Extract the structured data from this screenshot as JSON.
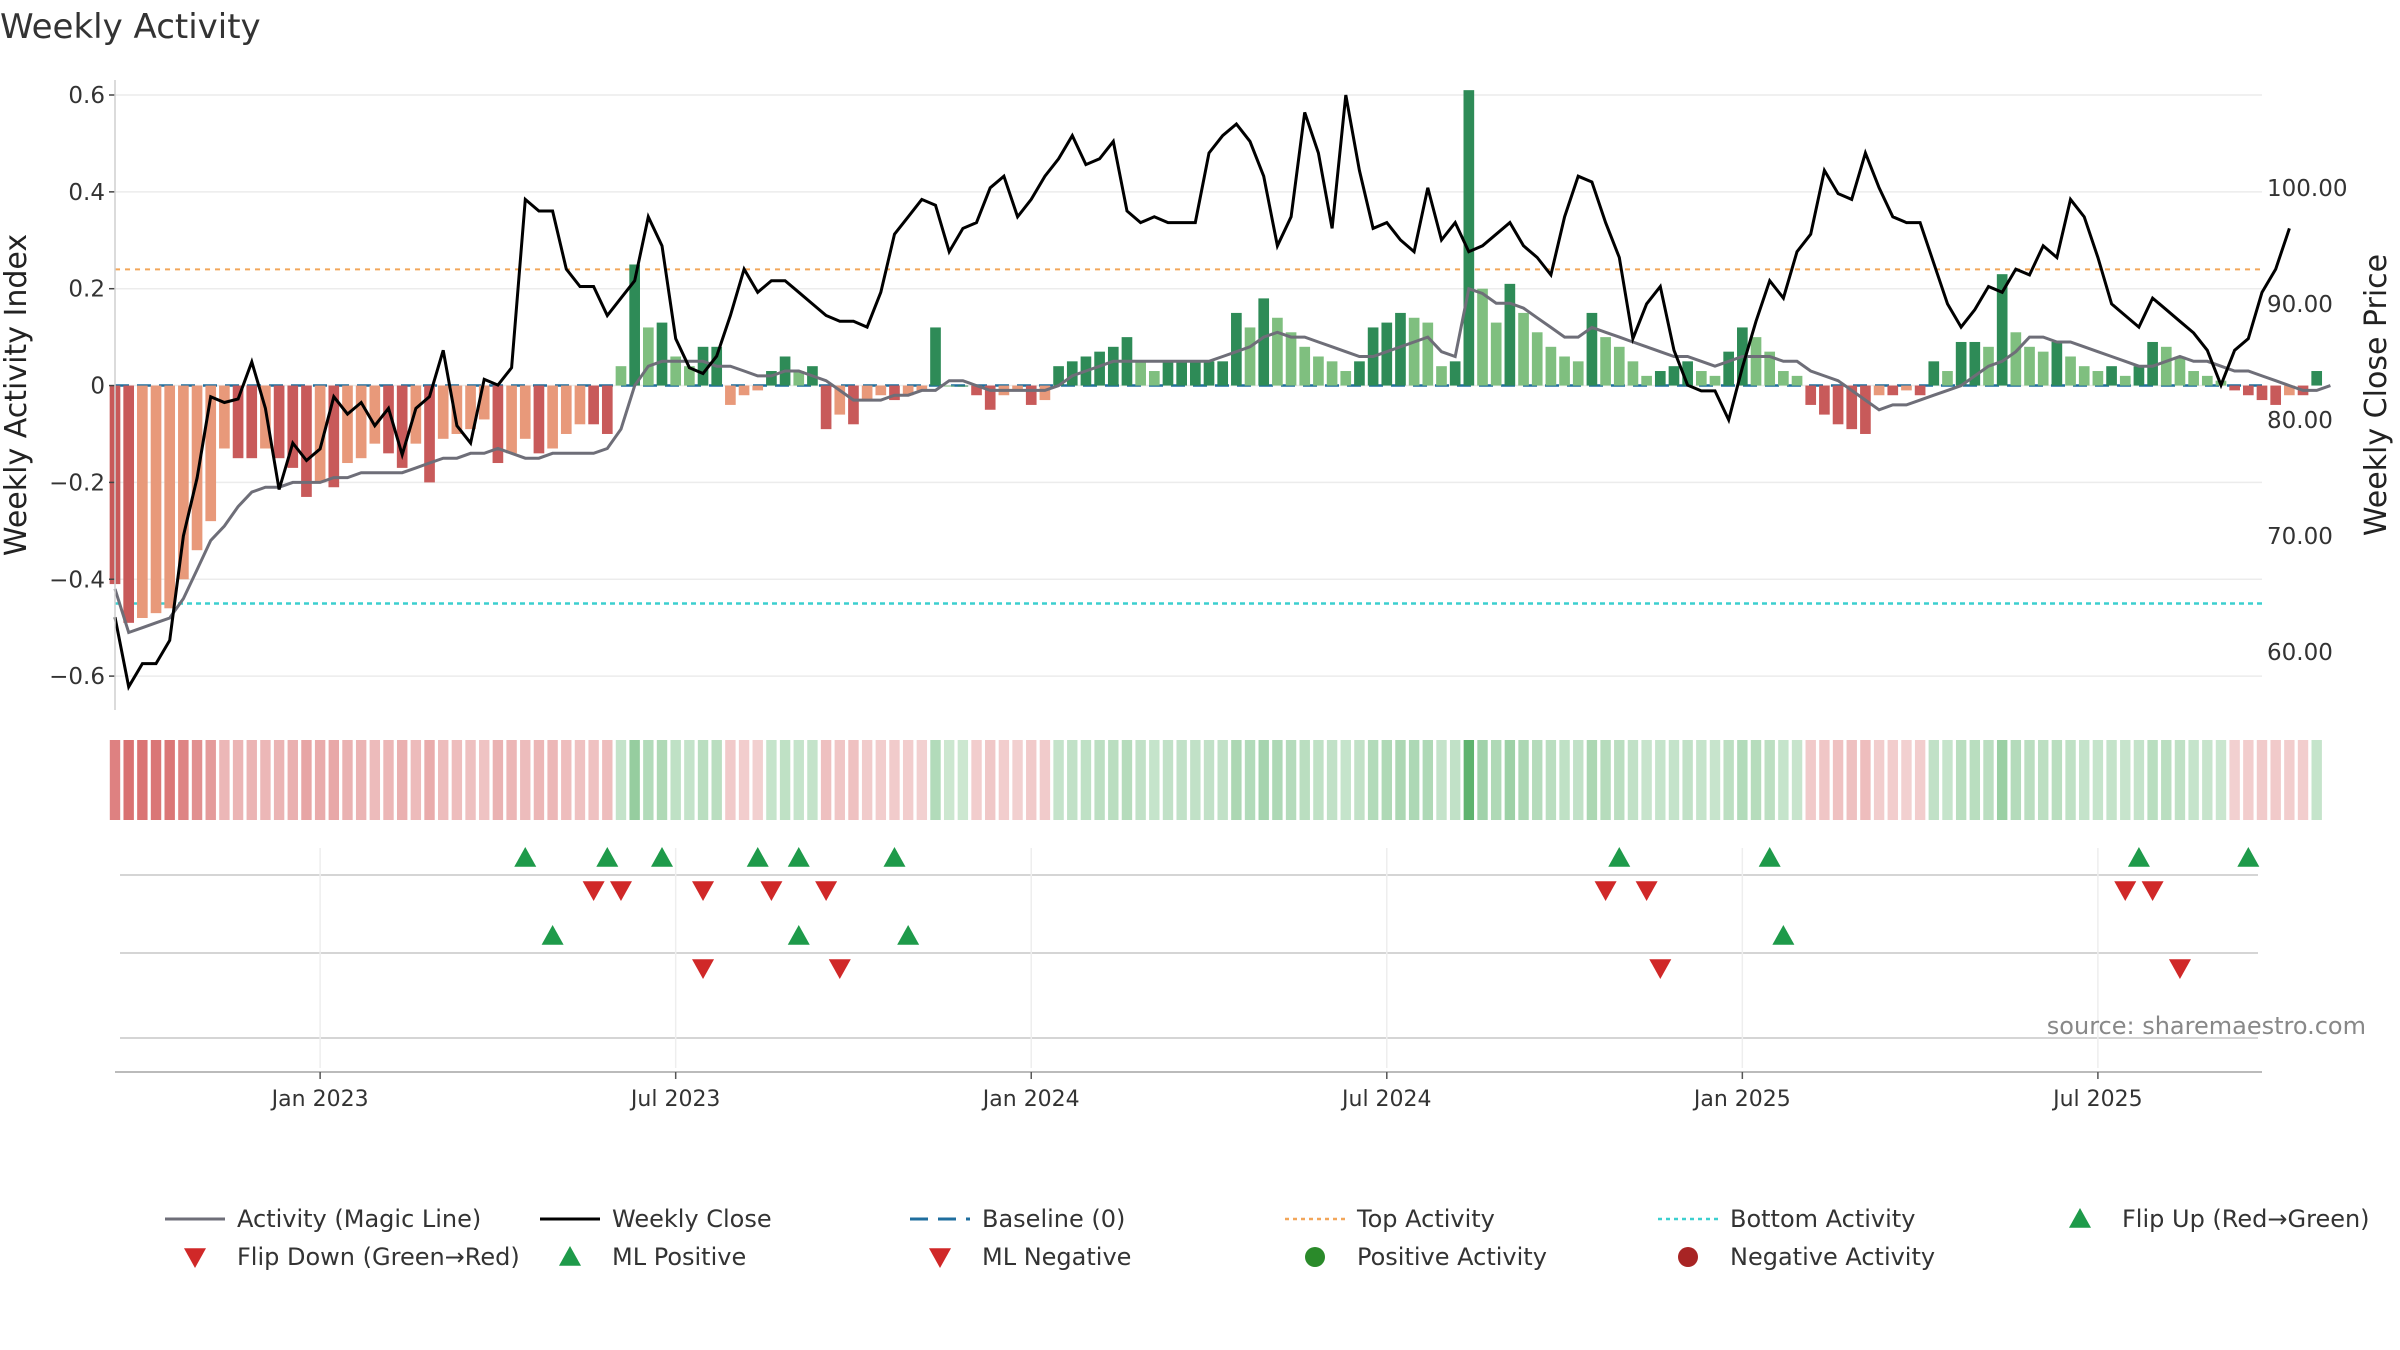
{
  "chart_data": {
    "type": "bar",
    "title": "Weekly Activity",
    "ylabel_left": "Weekly Activity Index",
    "ylabel_right": "Weekly Close Price",
    "source": "source: sharemaestro.com",
    "y_left_lim": [
      -0.67,
      0.6
    ],
    "y_right_lim": [
      55,
      108
    ],
    "y_left_ticks": [
      0.6,
      0.4,
      0.2,
      0,
      -0.2,
      -0.4,
      -0.6
    ],
    "y_left_tick_labels": [
      "0.6",
      "0.4",
      "0.2",
      "0",
      "−0.2",
      "−0.4",
      "−0.6"
    ],
    "y_right_ticks": [
      100,
      90,
      80,
      70,
      60
    ],
    "y_right_tick_labels": [
      "100.00",
      "90.00",
      "80.00",
      "70.00",
      "60.00"
    ],
    "x_week_range": [
      0,
      157
    ],
    "x_ticks": [
      {
        "week": 15,
        "label": "Jan 2023"
      },
      {
        "week": 41,
        "label": "Jul 2023"
      },
      {
        "week": 67,
        "label": "Jan 2024"
      },
      {
        "week": 93,
        "label": "Jul 2024"
      },
      {
        "week": 119,
        "label": "Jan 2025"
      },
      {
        "week": 145,
        "label": "Jul 2025"
      }
    ],
    "top_activity": 0.24,
    "bottom_activity": -0.45,
    "baseline": 0,
    "activity": [
      -0.41,
      -0.49,
      -0.48,
      -0.47,
      -0.46,
      -0.4,
      -0.34,
      -0.28,
      -0.13,
      -0.15,
      -0.15,
      -0.13,
      -0.15,
      -0.17,
      -0.23,
      -0.2,
      -0.21,
      -0.16,
      -0.15,
      -0.12,
      -0.14,
      -0.17,
      -0.12,
      -0.2,
      -0.11,
      -0.1,
      -0.09,
      -0.07,
      -0.16,
      -0.14,
      -0.11,
      -0.14,
      -0.13,
      -0.1,
      -0.08,
      -0.08,
      -0.1,
      0.04,
      0.25,
      0.12,
      0.13,
      0.06,
      0.04,
      0.08,
      0.08,
      -0.04,
      -0.02,
      -0.01,
      0.03,
      0.06,
      0.03,
      0.04,
      -0.09,
      -0.06,
      -0.08,
      -0.03,
      -0.02,
      -0.03,
      -0.02,
      -0.01,
      0.12,
      0.0,
      0.0,
      -0.02,
      -0.05,
      -0.02,
      -0.01,
      -0.04,
      -0.03,
      0.04,
      0.05,
      0.06,
      0.07,
      0.08,
      0.1,
      0.05,
      0.03,
      0.05,
      0.05,
      0.05,
      0.05,
      0.05,
      0.15,
      0.12,
      0.18,
      0.14,
      0.11,
      0.08,
      0.06,
      0.05,
      0.03,
      0.05,
      0.12,
      0.13,
      0.15,
      0.14,
      0.13,
      0.04,
      0.05,
      0.61,
      0.2,
      0.13,
      0.21,
      0.15,
      0.11,
      0.08,
      0.06,
      0.05,
      0.15,
      0.1,
      0.08,
      0.05,
      0.02,
      0.03,
      0.04,
      0.05,
      0.03,
      0.02,
      0.07,
      0.12,
      0.1,
      0.07,
      0.03,
      0.02,
      -0.04,
      -0.06,
      -0.08,
      -0.09,
      -0.1,
      -0.02,
      -0.02,
      -0.01,
      -0.02,
      0.05,
      0.03,
      0.09,
      0.09,
      0.08,
      0.23,
      0.11,
      0.08,
      0.07,
      0.09,
      0.06,
      0.04,
      0.03,
      0.04,
      0.02,
      0.04,
      0.09,
      0.08,
      0.06,
      0.03,
      0.02,
      0.01,
      -0.01,
      -0.02,
      -0.03,
      -0.04,
      -0.02,
      -0.02,
      0.03
    ],
    "magic_line": [
      -0.42,
      -0.51,
      -0.5,
      -0.49,
      -0.48,
      -0.44,
      -0.38,
      -0.32,
      -0.29,
      -0.25,
      -0.22,
      -0.21,
      -0.21,
      -0.2,
      -0.2,
      -0.2,
      -0.19,
      -0.19,
      -0.18,
      -0.18,
      -0.18,
      -0.18,
      -0.17,
      -0.16,
      -0.15,
      -0.15,
      -0.14,
      -0.14,
      -0.13,
      -0.14,
      -0.15,
      -0.15,
      -0.14,
      -0.14,
      -0.14,
      -0.14,
      -0.13,
      -0.09,
      0.0,
      0.04,
      0.05,
      0.05,
      0.05,
      0.05,
      0.04,
      0.04,
      0.03,
      0.02,
      0.02,
      0.03,
      0.03,
      0.02,
      0.01,
      -0.01,
      -0.03,
      -0.03,
      -0.03,
      -0.02,
      -0.02,
      -0.01,
      -0.01,
      0.01,
      0.01,
      0.0,
      -0.01,
      -0.01,
      -0.01,
      -0.01,
      -0.01,
      0.0,
      0.02,
      0.03,
      0.04,
      0.05,
      0.05,
      0.05,
      0.05,
      0.05,
      0.05,
      0.05,
      0.05,
      0.06,
      0.07,
      0.08,
      0.1,
      0.11,
      0.1,
      0.1,
      0.09,
      0.08,
      0.07,
      0.06,
      0.06,
      0.07,
      0.08,
      0.09,
      0.1,
      0.07,
      0.06,
      0.2,
      0.19,
      0.17,
      0.17,
      0.16,
      0.14,
      0.12,
      0.1,
      0.1,
      0.12,
      0.11,
      0.1,
      0.09,
      0.08,
      0.07,
      0.06,
      0.06,
      0.05,
      0.04,
      0.05,
      0.06,
      0.06,
      0.06,
      0.05,
      0.05,
      0.03,
      0.02,
      0.01,
      -0.01,
      -0.03,
      -0.05,
      -0.04,
      -0.04,
      -0.03,
      -0.02,
      -0.01,
      0.0,
      0.02,
      0.04,
      0.05,
      0.07,
      0.1,
      0.1,
      0.09,
      0.09,
      0.08,
      0.07,
      0.06,
      0.05,
      0.04,
      0.04,
      0.05,
      0.06,
      0.05,
      0.05,
      0.04,
      0.03,
      0.03,
      0.02,
      0.01,
      0.0,
      -0.01,
      -0.01,
      0.0
    ],
    "close": [
      63.0,
      57.0,
      59.0,
      59.0,
      61.0,
      70.0,
      75.0,
      82.0,
      81.5,
      81.8,
      85.0,
      81.0,
      74.0,
      78.0,
      76.5,
      77.5,
      82.0,
      80.5,
      81.5,
      79.5,
      81.0,
      77.0,
      81.0,
      82.0,
      86.0,
      79.5,
      78.0,
      83.5,
      83.0,
      84.5,
      99.0,
      98.0,
      98.0,
      93.0,
      91.5,
      91.5,
      89.0,
      90.5,
      92.0,
      97.5,
      95.0,
      87.0,
      84.5,
      84.0,
      85.5,
      89.0,
      93.0,
      91.0,
      92.0,
      92.0,
      91.0,
      90.0,
      89.0,
      88.5,
      88.5,
      88.0,
      91.0,
      96.0,
      97.5,
      99.0,
      98.5,
      94.5,
      96.5,
      97.0,
      100.0,
      101.0,
      97.5,
      99.0,
      101.0,
      102.5,
      104.5,
      102.0,
      102.5,
      104.0,
      98.0,
      97.0,
      97.5,
      97.0,
      97.0,
      97.0,
      103.0,
      104.5,
      105.5,
      104.0,
      101.0,
      95.0,
      97.5,
      106.5,
      103.0,
      96.5,
      108.0,
      101.5,
      96.5,
      97.0,
      95.5,
      94.5,
      100.0,
      95.5,
      97.0,
      94.5,
      95.0,
      96.0,
      97.0,
      95.0,
      94.0,
      92.5,
      97.5,
      101.0,
      100.5,
      97.0,
      94.0,
      87.0,
      90.0,
      91.5,
      86.0,
      83.0,
      82.5,
      82.5,
      80.0,
      84.5,
      88.5,
      92.0,
      90.5,
      94.5,
      96.0,
      101.5,
      99.5,
      99.0,
      103.0,
      100.0,
      97.5,
      97.0,
      97.0,
      93.5,
      90.0,
      88.0,
      89.5,
      91.5,
      91.0,
      93.0,
      92.5,
      95.0,
      94.0,
      99.0,
      97.5,
      94.0,
      90.0,
      89.0,
      88.0,
      90.5,
      89.5,
      88.5,
      87.5,
      86.0,
      83.0,
      86.0,
      87.0,
      91.0,
      93.0,
      96.5
    ]
  },
  "legend": [
    {
      "label": "Activity (Magic Line)",
      "symbol": "line-gray"
    },
    {
      "label": "Weekly Close",
      "symbol": "line-black"
    },
    {
      "label": "Baseline (0)",
      "symbol": "dash-blue"
    },
    {
      "label": "Top Activity",
      "symbol": "dot-orange"
    },
    {
      "label": "Bottom Activity",
      "symbol": "dot-cyan"
    },
    {
      "label": "Flip Up (Red→Green)",
      "symbol": "triangle-up-green"
    },
    {
      "label": "Flip Down (Green→Red)",
      "symbol": "triangle-down-red"
    },
    {
      "label": "ML Positive",
      "symbol": "triangle-up-green"
    },
    {
      "label": "ML Negative",
      "symbol": "triangle-down-red"
    },
    {
      "label": "Positive Activity",
      "symbol": "circle-green"
    },
    {
      "label": "Negative Activity",
      "symbol": "circle-red"
    }
  ],
  "flips": {
    "up": [
      30,
      36,
      40,
      47,
      50,
      57,
      110,
      121,
      148,
      156
    ],
    "down": [
      35,
      37,
      43,
      48,
      52,
      109,
      112,
      147,
      149
    ]
  },
  "ml_signals": {
    "up": [
      32,
      50,
      58,
      122
    ],
    "down": [
      43,
      53,
      113,
      151
    ]
  },
  "colors": {
    "pos_strong": "#2e8b57",
    "pos_light": "#7fbf7f",
    "neg_strong": "#c85a5a",
    "neg_light": "#e8997a",
    "magic_line": "#6e6e78",
    "close_line": "#000000",
    "baseline": "#1f6e9e",
    "top_line": "#f2a65a",
    "bottom_line": "#3ccfcf",
    "marker_up": "#1e9a4a",
    "marker_down": "#d02828"
  }
}
